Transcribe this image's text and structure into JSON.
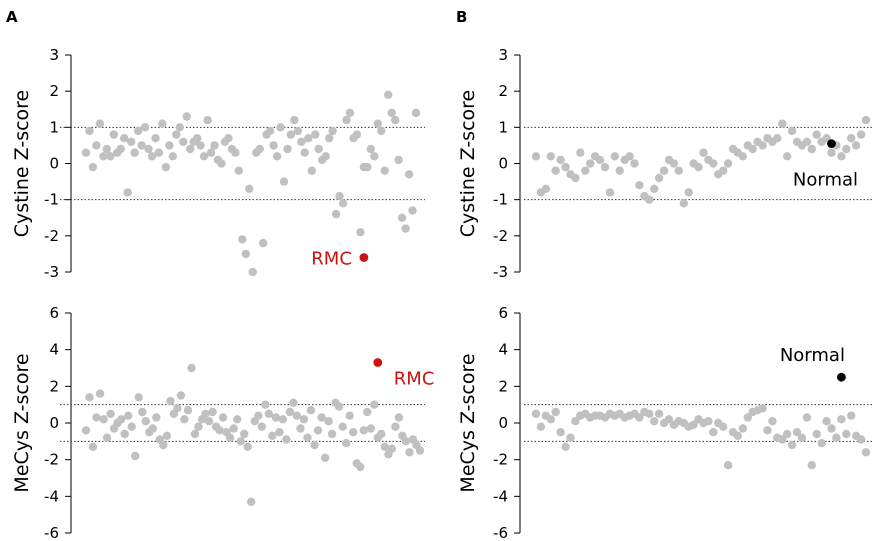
{
  "panel_letters": {
    "a": "A",
    "b": "B"
  },
  "colors": {
    "point": "#c0c0c0",
    "highlight_red": "#cc1111",
    "highlight_black": "#000000",
    "axis": "#000000"
  },
  "chart_data": [
    {
      "id": "A-top",
      "type": "scatter",
      "panel": "A",
      "ylabel": "Cystine Z-score",
      "ylim": [
        -3,
        3
      ],
      "yticks": [
        3,
        2,
        1,
        0,
        -1,
        -2,
        -3
      ],
      "reference_lines": [
        1,
        -1
      ],
      "reference_style": "dotted",
      "xlim": [
        0,
        100
      ],
      "grid": false,
      "points": [
        [
          1,
          0.3
        ],
        [
          2,
          0.9
        ],
        [
          3,
          -0.1
        ],
        [
          4,
          0.5
        ],
        [
          5,
          1.1
        ],
        [
          6,
          0.2
        ],
        [
          7,
          0.4
        ],
        [
          8,
          0.2
        ],
        [
          9,
          0.8
        ],
        [
          10,
          0.3
        ],
        [
          11,
          0.4
        ],
        [
          12,
          0.7
        ],
        [
          13,
          -0.8
        ],
        [
          14,
          0.6
        ],
        [
          15,
          0.3
        ],
        [
          16,
          0.9
        ],
        [
          17,
          0.5
        ],
        [
          18,
          1.0
        ],
        [
          19,
          0.4
        ],
        [
          20,
          0.2
        ],
        [
          21,
          0.7
        ],
        [
          22,
          0.3
        ],
        [
          23,
          1.1
        ],
        [
          24,
          -0.1
        ],
        [
          25,
          0.5
        ],
        [
          26,
          0.2
        ],
        [
          27,
          0.8
        ],
        [
          28,
          1.0
        ],
        [
          29,
          0.6
        ],
        [
          30,
          1.3
        ],
        [
          31,
          0.4
        ],
        [
          32,
          0.6
        ],
        [
          33,
          0.7
        ],
        [
          34,
          0.5
        ],
        [
          35,
          0.2
        ],
        [
          36,
          1.2
        ],
        [
          37,
          0.3
        ],
        [
          38,
          0.5
        ],
        [
          39,
          0.1
        ],
        [
          40,
          0.0
        ],
        [
          41,
          0.6
        ],
        [
          42,
          0.7
        ],
        [
          43,
          0.4
        ],
        [
          44,
          0.3
        ],
        [
          45,
          -0.2
        ],
        [
          46,
          -2.1
        ],
        [
          47,
          -2.5
        ],
        [
          48,
          -0.7
        ],
        [
          49,
          -3.0
        ],
        [
          50,
          0.3
        ],
        [
          51,
          0.4
        ],
        [
          52,
          -2.2
        ],
        [
          53,
          0.8
        ],
        [
          54,
          0.9
        ],
        [
          55,
          0.5
        ],
        [
          56,
          0.2
        ],
        [
          57,
          1.0
        ],
        [
          58,
          -0.5
        ],
        [
          59,
          0.4
        ],
        [
          60,
          0.8
        ],
        [
          61,
          1.2
        ],
        [
          62,
          0.9
        ],
        [
          63,
          0.6
        ],
        [
          64,
          0.3
        ],
        [
          65,
          0.7
        ],
        [
          66,
          -0.2
        ],
        [
          67,
          0.8
        ],
        [
          68,
          0.4
        ],
        [
          69,
          0.1
        ],
        [
          70,
          0.2
        ],
        [
          71,
          0.7
        ],
        [
          72,
          0.9
        ],
        [
          73,
          -1.4
        ],
        [
          74,
          -0.9
        ],
        [
          75,
          -1.1
        ],
        [
          76,
          1.2
        ],
        [
          77,
          1.4
        ],
        [
          78,
          0.7
        ],
        [
          79,
          0.8
        ],
        [
          80,
          -1.9
        ],
        [
          81,
          -0.1
        ],
        [
          82,
          -0.1
        ],
        [
          83,
          0.4
        ],
        [
          84,
          0.2
        ],
        [
          85,
          1.1
        ],
        [
          86,
          0.9
        ],
        [
          87,
          -0.2
        ],
        [
          88,
          1.9
        ],
        [
          89,
          1.4
        ],
        [
          90,
          1.2
        ],
        [
          91,
          0.1
        ],
        [
          92,
          -1.5
        ],
        [
          93,
          -1.8
        ],
        [
          94,
          -0.3
        ],
        [
          95,
          -1.3
        ],
        [
          96,
          1.4
        ]
      ],
      "highlight": {
        "x": 81,
        "y": -2.6,
        "label": "RMC",
        "color": "red",
        "label_side": "left"
      }
    },
    {
      "id": "A-bottom",
      "type": "scatter",
      "panel": "A",
      "ylabel": "MeCys Z-score",
      "ylim": [
        -6,
        6
      ],
      "yticks": [
        6,
        4,
        2,
        0,
        -2,
        -4,
        -6
      ],
      "reference_lines": [
        1,
        -1
      ],
      "reference_style": "dotted",
      "xlim": [
        0,
        100
      ],
      "grid": false,
      "points": [
        [
          1,
          -0.4
        ],
        [
          2,
          1.4
        ],
        [
          3,
          -1.3
        ],
        [
          4,
          0.3
        ],
        [
          5,
          1.6
        ],
        [
          6,
          0.2
        ],
        [
          7,
          -0.8
        ],
        [
          8,
          0.5
        ],
        [
          9,
          -0.3
        ],
        [
          10,
          0.0
        ],
        [
          11,
          0.2
        ],
        [
          12,
          -0.6
        ],
        [
          13,
          0.4
        ],
        [
          14,
          -0.2
        ],
        [
          15,
          -1.8
        ],
        [
          16,
          1.4
        ],
        [
          17,
          0.6
        ],
        [
          18,
          0.1
        ],
        [
          19,
          -0.5
        ],
        [
          20,
          -0.3
        ],
        [
          21,
          0.3
        ],
        [
          22,
          -0.9
        ],
        [
          23,
          -1.2
        ],
        [
          24,
          -0.7
        ],
        [
          25,
          1.2
        ],
        [
          26,
          0.5
        ],
        [
          27,
          0.8
        ],
        [
          28,
          1.5
        ],
        [
          29,
          0.2
        ],
        [
          30,
          0.7
        ],
        [
          31,
          3.0
        ],
        [
          32,
          -0.6
        ],
        [
          33,
          -0.2
        ],
        [
          34,
          0.2
        ],
        [
          35,
          0.5
        ],
        [
          36,
          0.1
        ],
        [
          37,
          0.6
        ],
        [
          38,
          -0.2
        ],
        [
          39,
          -0.4
        ],
        [
          40,
          0.3
        ],
        [
          41,
          -0.5
        ],
        [
          42,
          -0.8
        ],
        [
          43,
          -0.3
        ],
        [
          44,
          0.2
        ],
        [
          45,
          -1.0
        ],
        [
          46,
          -0.6
        ],
        [
          47,
          -1.3
        ],
        [
          48,
          -4.3
        ],
        [
          49,
          0.1
        ],
        [
          50,
          0.4
        ],
        [
          51,
          -0.2
        ],
        [
          52,
          1.0
        ],
        [
          53,
          0.5
        ],
        [
          54,
          -0.7
        ],
        [
          55,
          0.3
        ],
        [
          56,
          -0.5
        ],
        [
          57,
          0.2
        ],
        [
          58,
          -0.9
        ],
        [
          59,
          0.6
        ],
        [
          60,
          1.1
        ],
        [
          61,
          0.4
        ],
        [
          62,
          -0.3
        ],
        [
          63,
          0.2
        ],
        [
          64,
          -0.8
        ],
        [
          65,
          0.7
        ],
        [
          66,
          -1.2
        ],
        [
          67,
          -0.4
        ],
        [
          68,
          0.3
        ],
        [
          69,
          -1.9
        ],
        [
          70,
          0.1
        ],
        [
          71,
          -0.6
        ],
        [
          72,
          1.1
        ],
        [
          73,
          0.9
        ],
        [
          74,
          -0.2
        ],
        [
          75,
          -1.1
        ],
        [
          76,
          0.4
        ],
        [
          77,
          -0.5
        ],
        [
          78,
          -2.2
        ],
        [
          79,
          -2.4
        ],
        [
          80,
          -0.4
        ],
        [
          81,
          0.6
        ],
        [
          82,
          -0.3
        ],
        [
          83,
          1.0
        ],
        [
          84,
          -0.8
        ],
        [
          85,
          -0.6
        ],
        [
          86,
          -1.3
        ],
        [
          87,
          -1.7
        ],
        [
          88,
          -1.4
        ],
        [
          89,
          -0.2
        ],
        [
          90,
          0.3
        ],
        [
          91,
          -0.7
        ],
        [
          92,
          -1.0
        ],
        [
          93,
          -1.6
        ],
        [
          94,
          -0.9
        ],
        [
          95,
          -1.2
        ],
        [
          96,
          -1.5
        ]
      ],
      "highlight": {
        "x": 84,
        "y": 3.3,
        "label": "RMC",
        "color": "red",
        "label_side": "right"
      }
    },
    {
      "id": "B-top",
      "type": "scatter",
      "panel": "B",
      "ylabel": "Cystine Z-score",
      "ylim": [
        -3,
        3
      ],
      "yticks": [
        3,
        2,
        1,
        0,
        -1,
        -2,
        -3
      ],
      "reference_lines": [
        1,
        -1
      ],
      "reference_style": "dotted",
      "xlim": [
        0,
        100
      ],
      "grid": false,
      "points": [
        [
          1,
          0.2
        ],
        [
          2,
          -0.8
        ],
        [
          3,
          -0.7
        ],
        [
          4,
          0.2
        ],
        [
          5,
          -0.2
        ],
        [
          6,
          0.1
        ],
        [
          7,
          -0.1
        ],
        [
          8,
          -0.3
        ],
        [
          9,
          -0.4
        ],
        [
          10,
          0.3
        ],
        [
          11,
          -0.2
        ],
        [
          12,
          0.0
        ],
        [
          13,
          0.2
        ],
        [
          14,
          0.1
        ],
        [
          15,
          -0.1
        ],
        [
          16,
          -0.8
        ],
        [
          17,
          0.2
        ],
        [
          18,
          -0.2
        ],
        [
          19,
          0.1
        ],
        [
          20,
          0.2
        ],
        [
          21,
          0.0
        ],
        [
          22,
          -0.6
        ],
        [
          23,
          -0.9
        ],
        [
          24,
          -1.0
        ],
        [
          25,
          -0.7
        ],
        [
          26,
          -0.4
        ],
        [
          27,
          -0.2
        ],
        [
          28,
          0.1
        ],
        [
          29,
          0.0
        ],
        [
          30,
          -0.2
        ],
        [
          31,
          -1.1
        ],
        [
          32,
          -0.8
        ],
        [
          33,
          0.0
        ],
        [
          34,
          -0.1
        ],
        [
          35,
          0.3
        ],
        [
          36,
          0.1
        ],
        [
          37,
          0.0
        ],
        [
          38,
          -0.3
        ],
        [
          39,
          -0.2
        ],
        [
          40,
          0.0
        ],
        [
          41,
          0.4
        ],
        [
          42,
          0.3
        ],
        [
          43,
          0.2
        ],
        [
          44,
          0.5
        ],
        [
          45,
          0.4
        ],
        [
          46,
          0.6
        ],
        [
          47,
          0.5
        ],
        [
          48,
          0.7
        ],
        [
          49,
          0.6
        ],
        [
          50,
          0.7
        ],
        [
          51,
          1.1
        ],
        [
          52,
          0.2
        ],
        [
          53,
          0.9
        ],
        [
          54,
          0.6
        ],
        [
          55,
          0.5
        ],
        [
          56,
          0.6
        ],
        [
          57,
          0.4
        ],
        [
          58,
          0.8
        ],
        [
          59,
          0.6
        ],
        [
          60,
          0.7
        ],
        [
          61,
          0.3
        ],
        [
          62,
          0.5
        ],
        [
          63,
          0.2
        ],
        [
          64,
          0.4
        ],
        [
          65,
          0.7
        ],
        [
          66,
          0.5
        ],
        [
          67,
          0.8
        ],
        [
          68,
          1.2
        ]
      ],
      "highlight": {
        "x": 61,
        "y": 0.55,
        "label": "Normal",
        "color": "black",
        "label_side": "below"
      }
    },
    {
      "id": "B-bottom",
      "type": "scatter",
      "panel": "B",
      "ylabel": "MeCys Z-score",
      "ylim": [
        -6,
        6
      ],
      "yticks": [
        6,
        4,
        2,
        0,
        -2,
        -4,
        -6
      ],
      "reference_lines": [
        1,
        -1
      ],
      "reference_style": "dotted",
      "xlim": [
        0,
        100
      ],
      "grid": false,
      "points": [
        [
          1,
          0.5
        ],
        [
          2,
          -0.2
        ],
        [
          3,
          0.4
        ],
        [
          4,
          0.2
        ],
        [
          5,
          0.6
        ],
        [
          6,
          -0.5
        ],
        [
          7,
          -1.3
        ],
        [
          8,
          -0.8
        ],
        [
          9,
          0.1
        ],
        [
          10,
          0.4
        ],
        [
          11,
          0.5
        ],
        [
          12,
          0.3
        ],
        [
          13,
          0.4
        ],
        [
          14,
          0.4
        ],
        [
          15,
          0.3
        ],
        [
          16,
          0.5
        ],
        [
          17,
          0.4
        ],
        [
          18,
          0.5
        ],
        [
          19,
          0.3
        ],
        [
          20,
          0.4
        ],
        [
          21,
          0.5
        ],
        [
          22,
          0.3
        ],
        [
          23,
          0.6
        ],
        [
          24,
          0.5
        ],
        [
          25,
          0.1
        ],
        [
          26,
          0.5
        ],
        [
          27,
          0.0
        ],
        [
          28,
          0.2
        ],
        [
          29,
          -0.1
        ],
        [
          30,
          0.1
        ],
        [
          31,
          0.0
        ],
        [
          32,
          -0.2
        ],
        [
          33,
          -0.1
        ],
        [
          34,
          0.2
        ],
        [
          35,
          0.0
        ],
        [
          36,
          0.1
        ],
        [
          37,
          -0.5
        ],
        [
          38,
          0.0
        ],
        [
          39,
          -0.2
        ],
        [
          40,
          -2.3
        ],
        [
          41,
          -0.5
        ],
        [
          42,
          -0.7
        ],
        [
          43,
          -0.3
        ],
        [
          44,
          0.3
        ],
        [
          45,
          0.6
        ],
        [
          46,
          0.7
        ],
        [
          47,
          0.8
        ],
        [
          48,
          -0.4
        ],
        [
          49,
          0.1
        ],
        [
          50,
          -0.8
        ],
        [
          51,
          -0.9
        ],
        [
          52,
          -0.6
        ],
        [
          53,
          -1.2
        ],
        [
          54,
          -0.5
        ],
        [
          55,
          -0.8
        ],
        [
          56,
          0.3
        ],
        [
          57,
          -2.3
        ],
        [
          58,
          -0.6
        ],
        [
          59,
          -1.1
        ],
        [
          60,
          0.1
        ],
        [
          61,
          -0.3
        ],
        [
          62,
          -0.8
        ],
        [
          63,
          0.2
        ],
        [
          64,
          -0.6
        ],
        [
          65,
          0.4
        ],
        [
          66,
          -0.7
        ],
        [
          67,
          -0.9
        ],
        [
          68,
          -1.6
        ]
      ],
      "highlight": {
        "x": 63,
        "y": 2.5,
        "label": "Normal",
        "color": "black",
        "label_side": "above"
      }
    }
  ]
}
